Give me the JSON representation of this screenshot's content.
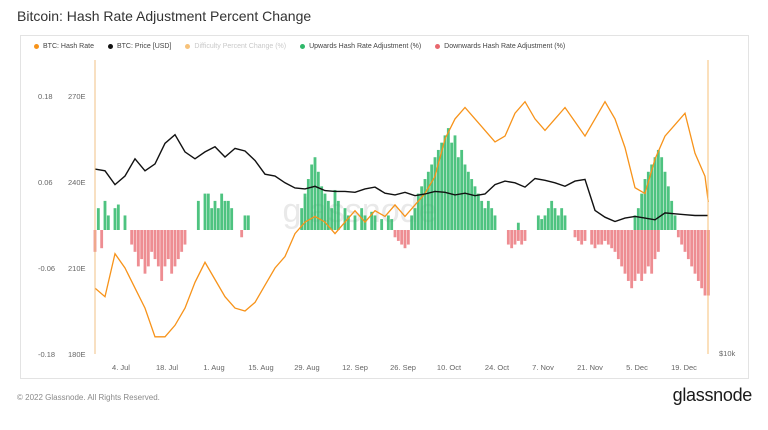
{
  "title": "Bitcoin: Hash Rate Adjustment Percent Change",
  "legend": [
    {
      "label": "BTC: Hash Rate",
      "color": "#f7931a",
      "faded": false
    },
    {
      "label": "BTC: Price [USD]",
      "color": "#111111",
      "faded": false
    },
    {
      "label": "Difficulty Percent Change (%)",
      "color": "#f7c27a",
      "faded": true
    },
    {
      "label": "Upwards Hash Rate Adjustment (%)",
      "color": "#2fb86a",
      "faded": false
    },
    {
      "label": "Downwards Hash Rate Adjustment (%)",
      "color": "#e8676d",
      "faded": false
    }
  ],
  "footer": "© 2022 Glassnode. All Rights Reserved.",
  "brand": "glassnode",
  "watermark": "glassnode",
  "colors": {
    "up": "#2fb86a",
    "down": "#e8676d",
    "hash": "#f7931a",
    "price": "#111111"
  },
  "chart_data": {
    "type": "bar",
    "y_left_ticks": [
      "0.18",
      "0.06",
      "-0.06",
      "-0.18"
    ],
    "y_left2_ticks": [
      "270E",
      "240E",
      "210E",
      "180E"
    ],
    "y_right_label": "$10k",
    "x_ticks": [
      "4. Jul",
      "18. Jul",
      "1. Aug",
      "15. Aug",
      "29. Aug",
      "12. Sep",
      "26. Sep",
      "10. Oct",
      "24. Oct",
      "7. Nov",
      "21. Nov",
      "5. Dec",
      "19. Dec"
    ],
    "x_start": "2022-06-26",
    "x_end": "2022-12-26",
    "ylim_pct": [
      -0.18,
      0.18
    ],
    "ylim_hash": [
      180,
      270
    ],
    "hash_rate": [
      [
        0,
        203
      ],
      [
        3,
        200
      ],
      [
        6,
        215
      ],
      [
        9,
        210
      ],
      [
        12,
        203
      ],
      [
        15,
        196
      ],
      [
        18,
        186
      ],
      [
        21,
        186
      ],
      [
        24,
        190
      ],
      [
        27,
        196
      ],
      [
        30,
        205
      ],
      [
        33,
        212
      ],
      [
        36,
        206
      ],
      [
        39,
        200
      ],
      [
        42,
        196
      ],
      [
        45,
        195
      ],
      [
        48,
        198
      ],
      [
        51,
        204
      ],
      [
        54,
        210
      ],
      [
        57,
        214
      ],
      [
        60,
        222
      ],
      [
        63,
        226
      ],
      [
        66,
        228
      ],
      [
        69,
        226
      ],
      [
        72,
        222
      ],
      [
        75,
        226
      ],
      [
        78,
        230
      ],
      [
        81,
        226
      ],
      [
        84,
        230
      ],
      [
        87,
        228
      ],
      [
        90,
        232
      ],
      [
        93,
        228
      ],
      [
        96,
        232
      ],
      [
        99,
        236
      ],
      [
        102,
        242
      ],
      [
        105,
        255
      ],
      [
        108,
        262
      ],
      [
        111,
        266
      ],
      [
        114,
        262
      ],
      [
        117,
        258
      ],
      [
        120,
        254
      ],
      [
        123,
        256
      ],
      [
        126,
        264
      ],
      [
        129,
        268
      ],
      [
        132,
        262
      ],
      [
        135,
        258
      ],
      [
        138,
        262
      ],
      [
        141,
        266
      ],
      [
        144,
        261
      ],
      [
        147,
        256
      ],
      [
        150,
        262
      ],
      [
        153,
        268
      ],
      [
        156,
        262
      ],
      [
        159,
        252
      ],
      [
        162,
        238
      ],
      [
        165,
        236
      ],
      [
        168,
        248
      ],
      [
        171,
        256
      ],
      [
        174,
        260
      ],
      [
        177,
        264
      ],
      [
        180,
        250
      ],
      [
        183,
        242
      ],
      [
        184,
        233
      ]
    ],
    "price_usd_k": [
      [
        0,
        22.2
      ],
      [
        3,
        22
      ],
      [
        6,
        20.4
      ],
      [
        9,
        21.4
      ],
      [
        12,
        23.4
      ],
      [
        15,
        22
      ],
      [
        18,
        22.8
      ],
      [
        21,
        25.2
      ],
      [
        24,
        26.2
      ],
      [
        27,
        24.2
      ],
      [
        30,
        23.4
      ],
      [
        33,
        24.2
      ],
      [
        36,
        24.8
      ],
      [
        39,
        23.6
      ],
      [
        42,
        24.6
      ],
      [
        45,
        24.3
      ],
      [
        48,
        23.2
      ],
      [
        51,
        21.6
      ],
      [
        54,
        21.4
      ],
      [
        57,
        20.6
      ],
      [
        60,
        20
      ],
      [
        63,
        19.9
      ],
      [
        66,
        20.2
      ],
      [
        69,
        19.7
      ],
      [
        72,
        19.6
      ],
      [
        75,
        19.6
      ],
      [
        78,
        19.5
      ],
      [
        81,
        19.9
      ],
      [
        84,
        20.1
      ],
      [
        87,
        19.4
      ],
      [
        90,
        19.2
      ],
      [
        93,
        19.5
      ],
      [
        96,
        19.1
      ],
      [
        99,
        19.3
      ],
      [
        102,
        19.6
      ],
      [
        105,
        19.5
      ],
      [
        108,
        19.2
      ],
      [
        111,
        19.4
      ],
      [
        114,
        19.1
      ],
      [
        117,
        19.3
      ],
      [
        120,
        20.4
      ],
      [
        123,
        20.8
      ],
      [
        126,
        20.6
      ],
      [
        129,
        20.1
      ],
      [
        132,
        21.1
      ],
      [
        135,
        20.9
      ],
      [
        138,
        20.6
      ],
      [
        141,
        20.2
      ],
      [
        144,
        20.8
      ],
      [
        147,
        21.0
      ],
      [
        150,
        17.4
      ],
      [
        153,
        16.6
      ],
      [
        156,
        16.1
      ],
      [
        159,
        16.5
      ],
      [
        162,
        16.7
      ],
      [
        165,
        16.5
      ],
      [
        168,
        16.3
      ],
      [
        171,
        17.1
      ],
      [
        174,
        17.0
      ],
      [
        177,
        16.9
      ],
      [
        180,
        16.8
      ],
      [
        183,
        16.8
      ],
      [
        184,
        16.8
      ]
    ],
    "upward_pct": [
      [
        1,
        0.03
      ],
      [
        3,
        0.04
      ],
      [
        4,
        0.02
      ],
      [
        6,
        0.03
      ],
      [
        7,
        0.035
      ],
      [
        9,
        0.02
      ],
      [
        31,
        0.04
      ],
      [
        33,
        0.05
      ],
      [
        34,
        0.05
      ],
      [
        35,
        0.03
      ],
      [
        36,
        0.04
      ],
      [
        37,
        0.03
      ],
      [
        38,
        0.05
      ],
      [
        39,
        0.04
      ],
      [
        40,
        0.04
      ],
      [
        41,
        0.03
      ],
      [
        45,
        0.02
      ],
      [
        46,
        0.02
      ],
      [
        62,
        0.03
      ],
      [
        63,
        0.05
      ],
      [
        64,
        0.07
      ],
      [
        65,
        0.09
      ],
      [
        66,
        0.1
      ],
      [
        67,
        0.08
      ],
      [
        68,
        0.06
      ],
      [
        69,
        0.05
      ],
      [
        70,
        0.04
      ],
      [
        71,
        0.03
      ],
      [
        72,
        0.055
      ],
      [
        73,
        0.04
      ],
      [
        75,
        0.03
      ],
      [
        76,
        0.02
      ],
      [
        78,
        0.02
      ],
      [
        80,
        0.03
      ],
      [
        81,
        0.02
      ],
      [
        83,
        0.025
      ],
      [
        84,
        0.02
      ],
      [
        86,
        0.015
      ],
      [
        88,
        0.02
      ],
      [
        89,
        0.015
      ],
      [
        95,
        0.02
      ],
      [
        96,
        0.03
      ],
      [
        97,
        0.05
      ],
      [
        98,
        0.06
      ],
      [
        99,
        0.07
      ],
      [
        100,
        0.08
      ],
      [
        101,
        0.09
      ],
      [
        102,
        0.1
      ],
      [
        103,
        0.11
      ],
      [
        104,
        0.12
      ],
      [
        105,
        0.13
      ],
      [
        106,
        0.14
      ],
      [
        107,
        0.12
      ],
      [
        108,
        0.13
      ],
      [
        109,
        0.1
      ],
      [
        110,
        0.11
      ],
      [
        111,
        0.09
      ],
      [
        112,
        0.08
      ],
      [
        113,
        0.07
      ],
      [
        114,
        0.06
      ],
      [
        115,
        0.05
      ],
      [
        116,
        0.04
      ],
      [
        117,
        0.03
      ],
      [
        118,
        0.04
      ],
      [
        119,
        0.03
      ],
      [
        120,
        0.02
      ],
      [
        127,
        0.01
      ],
      [
        133,
        0.02
      ],
      [
        134,
        0.015
      ],
      [
        135,
        0.02
      ],
      [
        136,
        0.03
      ],
      [
        137,
        0.04
      ],
      [
        138,
        0.03
      ],
      [
        139,
        0.02
      ],
      [
        140,
        0.03
      ],
      [
        141,
        0.02
      ],
      [
        162,
        0.02
      ],
      [
        163,
        0.03
      ],
      [
        164,
        0.05
      ],
      [
        165,
        0.07
      ],
      [
        166,
        0.08
      ],
      [
        167,
        0.09
      ],
      [
        168,
        0.1
      ],
      [
        169,
        0.11
      ],
      [
        170,
        0.1
      ],
      [
        171,
        0.08
      ],
      [
        172,
        0.06
      ],
      [
        173,
        0.04
      ],
      [
        174,
        0.02
      ]
    ],
    "downward_pct": [
      [
        0,
        -0.03
      ],
      [
        2,
        -0.025
      ],
      [
        11,
        -0.02
      ],
      [
        12,
        -0.03
      ],
      [
        13,
        -0.05
      ],
      [
        14,
        -0.04
      ],
      [
        15,
        -0.06
      ],
      [
        16,
        -0.05
      ],
      [
        17,
        -0.03
      ],
      [
        18,
        -0.04
      ],
      [
        19,
        -0.05
      ],
      [
        20,
        -0.07
      ],
      [
        21,
        -0.05
      ],
      [
        22,
        -0.04
      ],
      [
        23,
        -0.06
      ],
      [
        24,
        -0.05
      ],
      [
        25,
        -0.04
      ],
      [
        26,
        -0.03
      ],
      [
        27,
        -0.02
      ],
      [
        44,
        -0.01
      ],
      [
        90,
        -0.01
      ],
      [
        91,
        -0.015
      ],
      [
        92,
        -0.02
      ],
      [
        93,
        -0.025
      ],
      [
        94,
        -0.02
      ],
      [
        124,
        -0.02
      ],
      [
        125,
        -0.025
      ],
      [
        126,
        -0.02
      ],
      [
        127,
        -0.015
      ],
      [
        128,
        -0.02
      ],
      [
        129,
        -0.015
      ],
      [
        144,
        -0.01
      ],
      [
        145,
        -0.015
      ],
      [
        146,
        -0.02
      ],
      [
        147,
        -0.015
      ],
      [
        149,
        -0.02
      ],
      [
        150,
        -0.025
      ],
      [
        151,
        -0.02
      ],
      [
        152,
        -0.02
      ],
      [
        153,
        -0.015
      ],
      [
        154,
        -0.02
      ],
      [
        155,
        -0.025
      ],
      [
        156,
        -0.03
      ],
      [
        157,
        -0.04
      ],
      [
        158,
        -0.05
      ],
      [
        159,
        -0.06
      ],
      [
        160,
        -0.07
      ],
      [
        161,
        -0.08
      ],
      [
        162,
        -0.07
      ],
      [
        163,
        -0.06
      ],
      [
        164,
        -0.07
      ],
      [
        165,
        -0.06
      ],
      [
        166,
        -0.05
      ],
      [
        167,
        -0.06
      ],
      [
        168,
        -0.04
      ],
      [
        169,
        -0.03
      ],
      [
        175,
        -0.01
      ],
      [
        176,
        -0.02
      ],
      [
        177,
        -0.03
      ],
      [
        178,
        -0.04
      ],
      [
        179,
        -0.05
      ],
      [
        180,
        -0.06
      ],
      [
        181,
        -0.07
      ],
      [
        182,
        -0.08
      ],
      [
        183,
        -0.09
      ],
      [
        184,
        -0.09
      ]
    ]
  }
}
